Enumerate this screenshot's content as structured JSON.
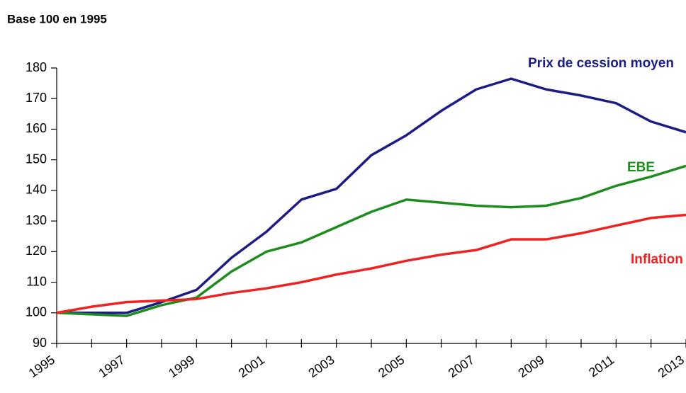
{
  "chart_data": {
    "type": "line",
    "y_axis_label": "Base 100 en 1995",
    "x": [
      1995,
      1996,
      1997,
      1998,
      1999,
      2000,
      2001,
      2002,
      2003,
      2004,
      2005,
      2006,
      2007,
      2008,
      2009,
      2010,
      2011,
      2012,
      2013
    ],
    "series": [
      {
        "name": "Prix de cession moyen",
        "color": "#1c1c82",
        "values": [
          100,
          100,
          100,
          103.5,
          107.5,
          118,
          126.5,
          137,
          140.5,
          151.5,
          158,
          166,
          173,
          176.5,
          173,
          171,
          168.5,
          162.5,
          159
        ]
      },
      {
        "name": "EBE",
        "color": "#1e8c1e",
        "values": [
          100,
          99.5,
          99,
          102.5,
          105,
          113.5,
          120,
          123,
          128,
          133,
          137,
          136,
          135,
          134.5,
          135,
          137.5,
          141.5,
          144.5,
          148
        ]
      },
      {
        "name": "Inflation",
        "color": "#ee2222",
        "values": [
          100,
          102,
          103.5,
          104,
          104.5,
          106.5,
          108,
          110,
          112.5,
          114.5,
          117,
          119,
          120.5,
          124,
          124,
          126,
          128.5,
          131,
          132
        ]
      }
    ],
    "xlim": [
      1995,
      2013
    ],
    "xticks": [
      1995,
      1997,
      1999,
      2001,
      2003,
      2005,
      2007,
      2009,
      2011,
      2013
    ],
    "ylim": [
      90,
      180
    ],
    "yticks": [
      90,
      100,
      110,
      120,
      130,
      140,
      150,
      160,
      170,
      180
    ],
    "grid": false
  }
}
